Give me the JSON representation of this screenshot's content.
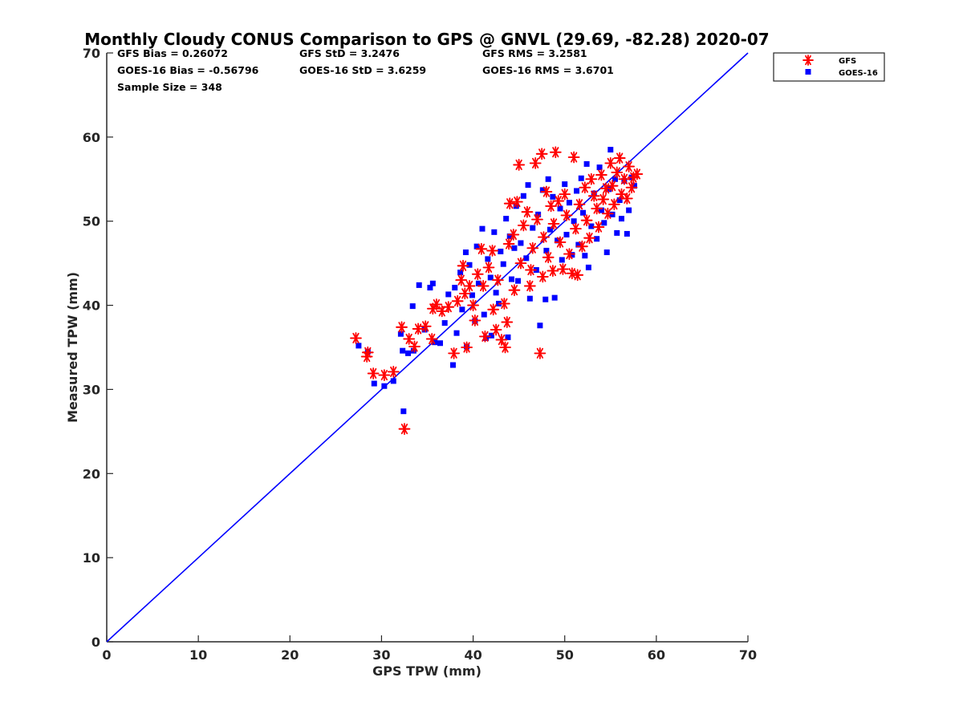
{
  "chart_data": {
    "type": "scatter",
    "title": "Monthly Cloudy CONUS Comparison to GPS @ GNVL (29.69, -82.28) 2020-07",
    "xlabel": "GPS TPW (mm)",
    "ylabel": "Measured TPW (mm)",
    "xlim": [
      0,
      70
    ],
    "ylim": [
      0,
      70
    ],
    "xticks": [
      0,
      10,
      20,
      30,
      40,
      50,
      60,
      70
    ],
    "yticks": [
      0,
      10,
      20,
      30,
      40,
      50,
      60,
      70
    ],
    "grid": false,
    "legend": "top-right",
    "reference_line": {
      "x": [
        0,
        70
      ],
      "y": [
        0,
        70
      ],
      "color": "#0000ff"
    },
    "stats": {
      "row1": [
        "GFS Bias = 0.26072",
        "GFS StD = 3.2476",
        "GFS RMS = 3.2581"
      ],
      "row2": [
        "GOES-16 Bias = -0.56796",
        "GOES-16 StD = 3.6259",
        "GOES-16 RMS = 3.6701"
      ],
      "row3": [
        "Sample Size = 348"
      ]
    },
    "series": [
      {
        "name": "GFS",
        "marker": "asterisk",
        "color": "#ff0000",
        "points": [
          [
            27.2,
            36.1
          ],
          [
            28.4,
            33.9
          ],
          [
            28.5,
            34.4
          ],
          [
            29.1,
            31.9
          ],
          [
            30.3,
            31.7
          ],
          [
            31.3,
            32.1
          ],
          [
            32.2,
            37.4
          ],
          [
            32.5,
            25.3
          ],
          [
            33.0,
            36.0
          ],
          [
            33.6,
            35.1
          ],
          [
            34.0,
            37.2
          ],
          [
            34.8,
            37.5
          ],
          [
            35.5,
            36.0
          ],
          [
            35.6,
            39.6
          ],
          [
            36.0,
            40.1
          ],
          [
            36.6,
            39.3
          ],
          [
            37.3,
            39.8
          ],
          [
            37.9,
            34.3
          ],
          [
            38.3,
            40.5
          ],
          [
            38.7,
            43.0
          ],
          [
            38.9,
            44.7
          ],
          [
            39.1,
            41.4
          ],
          [
            39.3,
            35.0
          ],
          [
            39.6,
            42.3
          ],
          [
            40.0,
            40.0
          ],
          [
            40.2,
            38.2
          ],
          [
            40.5,
            43.7
          ],
          [
            40.9,
            46.7
          ],
          [
            41.1,
            42.3
          ],
          [
            41.3,
            36.3
          ],
          [
            41.7,
            44.5
          ],
          [
            42.1,
            46.5
          ],
          [
            42.2,
            39.5
          ],
          [
            42.5,
            37.1
          ],
          [
            42.7,
            43.0
          ],
          [
            43.1,
            35.9
          ],
          [
            43.4,
            40.2
          ],
          [
            43.5,
            35.0
          ],
          [
            43.7,
            38.0
          ],
          [
            43.9,
            47.3
          ],
          [
            44.0,
            52.1
          ],
          [
            44.4,
            48.4
          ],
          [
            44.5,
            41.8
          ],
          [
            44.8,
            52.3
          ],
          [
            45.0,
            56.7
          ],
          [
            45.2,
            45.0
          ],
          [
            45.5,
            49.5
          ],
          [
            45.9,
            51.1
          ],
          [
            46.2,
            42.3
          ],
          [
            46.3,
            44.2
          ],
          [
            46.5,
            46.8
          ],
          [
            46.8,
            56.9
          ],
          [
            47.0,
            50.2
          ],
          [
            47.3,
            34.3
          ],
          [
            47.5,
            58.0
          ],
          [
            47.6,
            43.4
          ],
          [
            47.7,
            48.1
          ],
          [
            48.0,
            53.5
          ],
          [
            48.2,
            45.7
          ],
          [
            48.5,
            51.8
          ],
          [
            48.7,
            44.1
          ],
          [
            48.8,
            49.7
          ],
          [
            49.0,
            58.2
          ],
          [
            49.3,
            52.4
          ],
          [
            49.5,
            47.5
          ],
          [
            49.8,
            44.3
          ],
          [
            50.0,
            53.2
          ],
          [
            50.2,
            50.7
          ],
          [
            50.5,
            46.1
          ],
          [
            50.8,
            43.8
          ],
          [
            51.0,
            57.6
          ],
          [
            51.2,
            49.1
          ],
          [
            51.4,
            43.6
          ],
          [
            51.6,
            52.0
          ],
          [
            51.9,
            47.0
          ],
          [
            52.2,
            54.0
          ],
          [
            52.4,
            50.1
          ],
          [
            52.7,
            48.0
          ],
          [
            52.9,
            55.0
          ],
          [
            53.2,
            53.0
          ],
          [
            53.5,
            51.5
          ],
          [
            53.7,
            49.3
          ],
          [
            54.0,
            55.5
          ],
          [
            54.2,
            52.6
          ],
          [
            54.5,
            53.9
          ],
          [
            54.7,
            50.9
          ],
          [
            55.0,
            56.9
          ],
          [
            55.2,
            54.2
          ],
          [
            55.4,
            52.0
          ],
          [
            55.7,
            55.8
          ],
          [
            56.0,
            57.5
          ],
          [
            56.2,
            53.2
          ],
          [
            56.5,
            55.0
          ],
          [
            56.8,
            52.7
          ],
          [
            57.0,
            56.5
          ],
          [
            57.3,
            54.0
          ],
          [
            57.5,
            55.2
          ],
          [
            57.9,
            55.6
          ]
        ]
      },
      {
        "name": "GOES-16",
        "marker": "square",
        "color": "#0000ff",
        "points": [
          [
            27.5,
            35.2
          ],
          [
            28.5,
            34.5
          ],
          [
            29.2,
            30.7
          ],
          [
            30.3,
            30.4
          ],
          [
            31.3,
            31.0
          ],
          [
            32.1,
            36.6
          ],
          [
            32.3,
            34.6
          ],
          [
            32.4,
            27.4
          ],
          [
            32.9,
            34.3
          ],
          [
            33.4,
            39.9
          ],
          [
            33.5,
            34.6
          ],
          [
            34.1,
            42.4
          ],
          [
            34.7,
            37.1
          ],
          [
            35.3,
            42.1
          ],
          [
            35.6,
            42.6
          ],
          [
            35.8,
            35.6
          ],
          [
            36.4,
            35.5
          ],
          [
            36.9,
            37.9
          ],
          [
            37.3,
            41.3
          ],
          [
            37.8,
            32.9
          ],
          [
            38.0,
            42.1
          ],
          [
            38.2,
            36.7
          ],
          [
            38.6,
            43.9
          ],
          [
            38.8,
            39.5
          ],
          [
            39.2,
            46.3
          ],
          [
            39.3,
            35.1
          ],
          [
            39.6,
            44.8
          ],
          [
            39.9,
            41.2
          ],
          [
            40.2,
            38.1
          ],
          [
            40.4,
            47.0
          ],
          [
            40.6,
            42.6
          ],
          [
            41.0,
            49.1
          ],
          [
            41.2,
            38.9
          ],
          [
            41.4,
            36.1
          ],
          [
            41.6,
            45.5
          ],
          [
            41.9,
            43.3
          ],
          [
            42.0,
            36.4
          ],
          [
            42.3,
            48.7
          ],
          [
            42.5,
            41.5
          ],
          [
            42.8,
            40.2
          ],
          [
            43.0,
            46.4
          ],
          [
            43.3,
            44.9
          ],
          [
            43.6,
            50.3
          ],
          [
            43.8,
            36.2
          ],
          [
            44.0,
            48.2
          ],
          [
            44.2,
            43.1
          ],
          [
            44.5,
            46.8
          ],
          [
            44.7,
            51.8
          ],
          [
            44.9,
            42.9
          ],
          [
            45.2,
            47.4
          ],
          [
            45.5,
            53.0
          ],
          [
            45.8,
            45.6
          ],
          [
            46.0,
            54.3
          ],
          [
            46.2,
            40.8
          ],
          [
            46.5,
            49.2
          ],
          [
            46.9,
            44.2
          ],
          [
            47.1,
            50.8
          ],
          [
            47.3,
            37.6
          ],
          [
            47.6,
            53.7
          ],
          [
            47.9,
            40.7
          ],
          [
            48.0,
            46.5
          ],
          [
            48.2,
            55.0
          ],
          [
            48.4,
            49.0
          ],
          [
            48.7,
            52.9
          ],
          [
            48.9,
            40.9
          ],
          [
            49.2,
            47.7
          ],
          [
            49.5,
            51.5
          ],
          [
            49.7,
            45.4
          ],
          [
            50.0,
            54.4
          ],
          [
            50.2,
            48.4
          ],
          [
            50.5,
            52.2
          ],
          [
            50.8,
            46.0
          ],
          [
            51.0,
            50.0
          ],
          [
            51.3,
            53.6
          ],
          [
            51.5,
            47.2
          ],
          [
            51.8,
            55.1
          ],
          [
            52.0,
            51.0
          ],
          [
            52.2,
            45.9
          ],
          [
            52.4,
            56.8
          ],
          [
            52.6,
            44.5
          ],
          [
            52.9,
            49.4
          ],
          [
            53.2,
            53.3
          ],
          [
            53.5,
            47.9
          ],
          [
            53.8,
            56.4
          ],
          [
            54.0,
            51.3
          ],
          [
            54.3,
            49.8
          ],
          [
            54.6,
            46.3
          ],
          [
            54.8,
            53.8
          ],
          [
            55.0,
            58.5
          ],
          [
            55.2,
            50.8
          ],
          [
            55.5,
            55.0
          ],
          [
            55.7,
            48.6
          ],
          [
            56.0,
            52.5
          ],
          [
            56.2,
            50.3
          ],
          [
            56.5,
            54.8
          ],
          [
            56.8,
            48.5
          ],
          [
            57.0,
            51.3
          ],
          [
            57.3,
            55.2
          ],
          [
            57.6,
            54.2
          ]
        ]
      }
    ]
  }
}
